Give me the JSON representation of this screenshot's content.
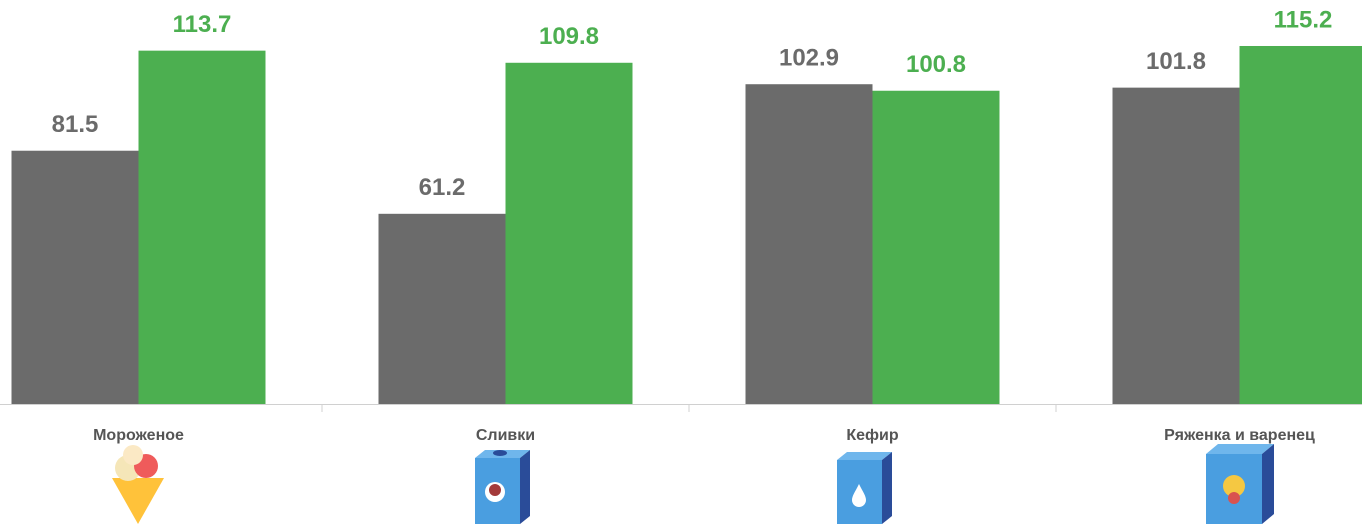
{
  "chart_data": {
    "type": "bar",
    "categories": [
      "Мороженое",
      "Сливки",
      "Кефир",
      "Ряженка и варенец"
    ],
    "series": [
      {
        "color": "#6b6b6b",
        "values": [
          81.5,
          61.2,
          102.9,
          101.8
        ]
      },
      {
        "color": "#4caf50",
        "values": [
          113.7,
          109.8,
          100.8,
          115.2
        ]
      }
    ],
    "ylim": [
      0,
      130
    ]
  }
}
